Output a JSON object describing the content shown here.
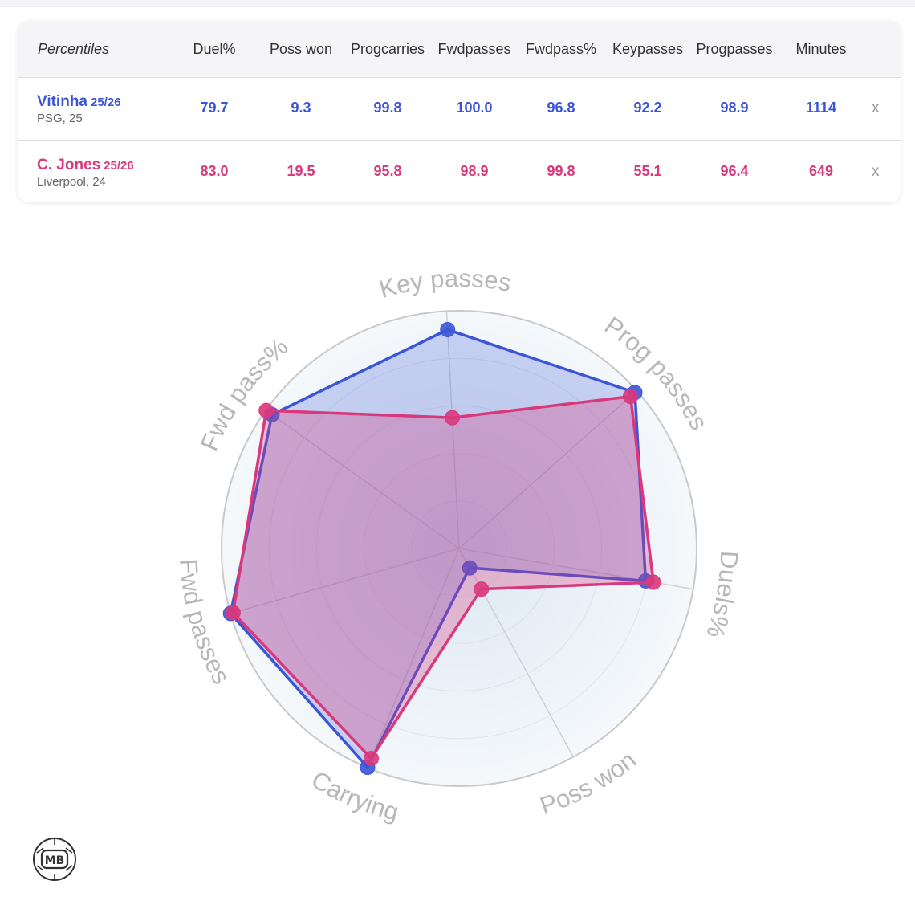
{
  "table": {
    "first_header": "Percentiles",
    "columns": [
      [
        "Duel%"
      ],
      [
        "Poss won"
      ],
      [
        "Prog",
        "carries"
      ],
      [
        "Fwd",
        "passes"
      ],
      [
        "Fwd",
        "pass%"
      ],
      [
        "Key",
        "passes"
      ],
      [
        "Prog",
        "passes"
      ],
      [
        "Minutes"
      ]
    ],
    "players": [
      {
        "name": "Vitinha",
        "season": "25/26",
        "meta": "PSG, 25",
        "color": "#3b55d6",
        "values": [
          "79.7",
          "9.3",
          "99.8",
          "100.0",
          "96.8",
          "92.2",
          "98.9",
          "1114"
        ],
        "remove_label": "x"
      },
      {
        "name": "C. Jones",
        "season": "25/26",
        "meta": "Liverpool, 24",
        "color": "#d9387c",
        "values": [
          "83.0",
          "19.5",
          "95.8",
          "98.9",
          "99.8",
          "55.1",
          "96.4",
          "649"
        ],
        "remove_label": "x"
      }
    ]
  },
  "chart_data": {
    "type": "radar",
    "axes": [
      "Key passes",
      "Prog passes",
      "Duels%",
      "Poss won",
      "Carrying",
      "Fwd passes",
      "Fwd pass%"
    ],
    "range": [
      0,
      100
    ],
    "series": [
      {
        "name": "Vitinha",
        "color": "#3b55d6",
        "values": [
          92.2,
          98.9,
          79.7,
          9.3,
          99.8,
          100.0,
          96.8
        ]
      },
      {
        "name": "C. Jones",
        "color": "#d9387c",
        "values": [
          55.1,
          96.4,
          83.0,
          19.5,
          95.8,
          98.9,
          99.8
        ]
      }
    ]
  },
  "logo": {
    "text": "MB"
  }
}
